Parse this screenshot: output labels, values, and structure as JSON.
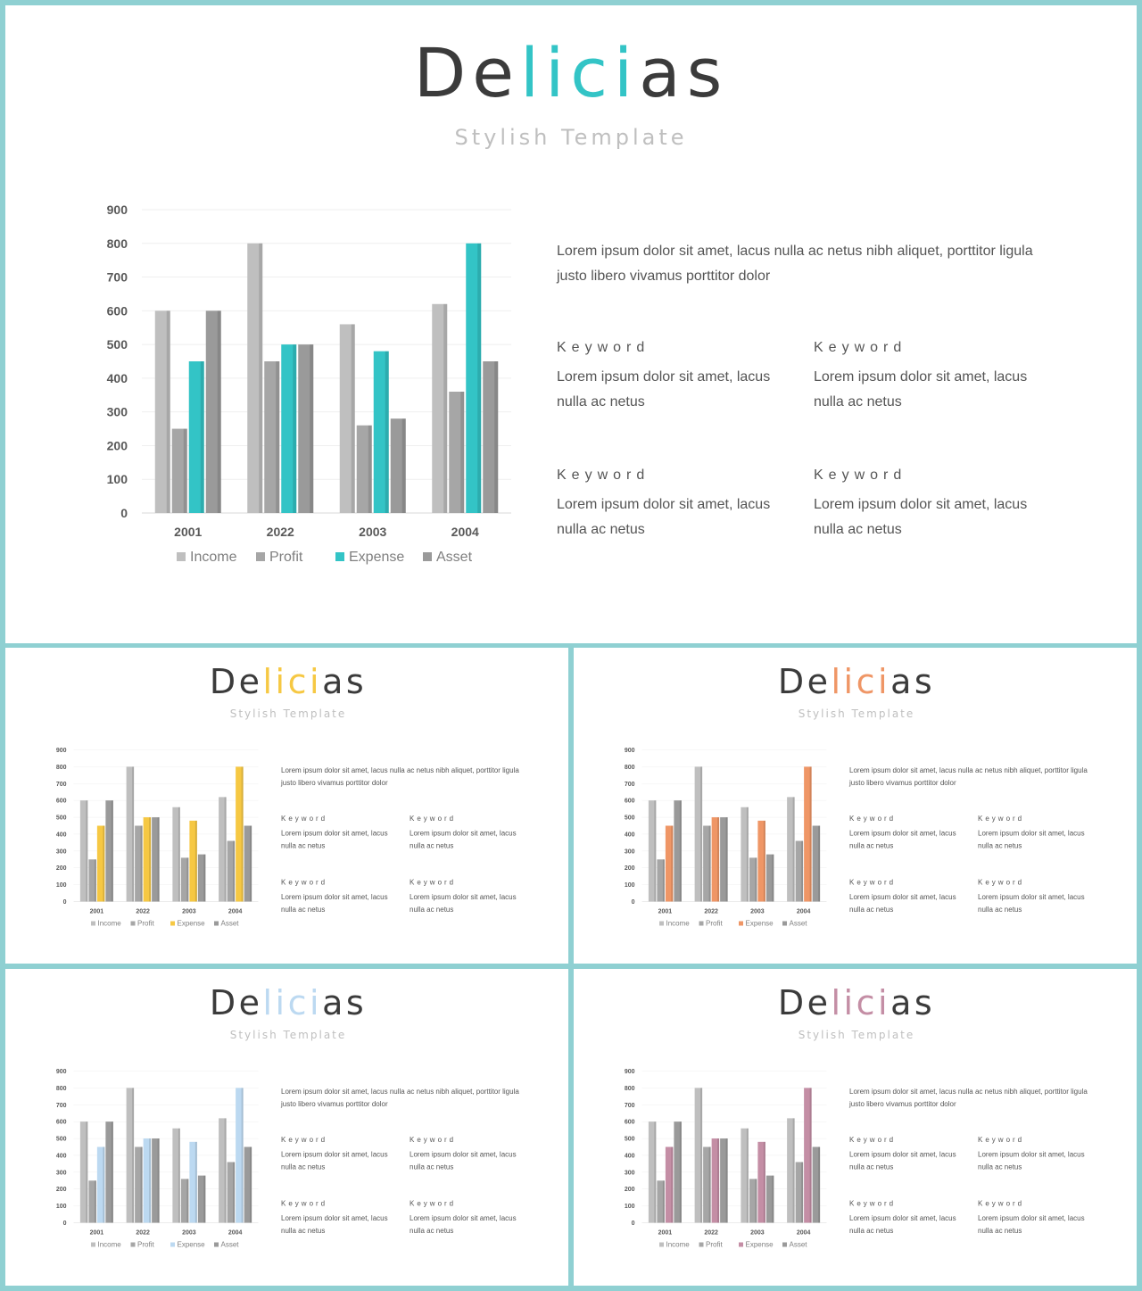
{
  "slides": [
    {
      "title_a": "De",
      "title_b": "lici",
      "title_c": "as",
      "subtitle": "Stylish  Template",
      "accent": "#33c4c6"
    },
    {
      "title_a": "De",
      "title_b": "lici",
      "title_c": "as",
      "subtitle": "Stylish  Template",
      "accent": "#f6c843"
    },
    {
      "title_a": "De",
      "title_b": "lici",
      "title_c": "as",
      "subtitle": "Stylish  Template",
      "accent": "#ef9666"
    },
    {
      "title_a": "De",
      "title_b": "lici",
      "title_c": "as",
      "subtitle": "Stylish  Template",
      "accent": "#bcd9f1"
    },
    {
      "title_a": "De",
      "title_b": "lici",
      "title_c": "as",
      "subtitle": "Stylish  Template",
      "accent": "#c48ea5"
    }
  ],
  "content": {
    "description": "Lorem ipsum dolor sit amet, lacus nulla ac netus nibh aliquet, porttitor ligula justo libero vivamus porttitor dolor",
    "keywords": [
      {
        "title": "Keyword",
        "text": "Lorem ipsum dolor sit amet, lacus nulla ac netus"
      },
      {
        "title": "Keyword",
        "text": "Lorem ipsum dolor sit amet, lacus nulla ac netus"
      },
      {
        "title": "Keyword",
        "text": "Lorem ipsum dolor sit amet, lacus nulla ac netus"
      },
      {
        "title": "Keyword",
        "text": "Lorem ipsum dolor sit amet, lacus nulla ac netus"
      }
    ]
  },
  "chart_data": {
    "type": "bar",
    "categories": [
      "2001",
      "2022",
      "2003",
      "2004"
    ],
    "series": [
      {
        "name": "Income",
        "values": [
          600,
          800,
          560,
          620
        ],
        "color": "#bfbfbf"
      },
      {
        "name": "Profit",
        "values": [
          250,
          450,
          260,
          360
        ],
        "color": "#a6a6a6"
      },
      {
        "name": "Expense",
        "values": [
          450,
          500,
          480,
          800
        ],
        "color": "accent"
      },
      {
        "name": "Asset",
        "values": [
          600,
          500,
          280,
          450
        ],
        "color": "#9a9a9a"
      }
    ],
    "ylim": [
      0,
      900
    ],
    "yticks": [
      "0",
      "100",
      "200",
      "300",
      "400",
      "500",
      "600",
      "700",
      "800",
      "900"
    ],
    "grid": true,
    "legend": "bottom"
  }
}
